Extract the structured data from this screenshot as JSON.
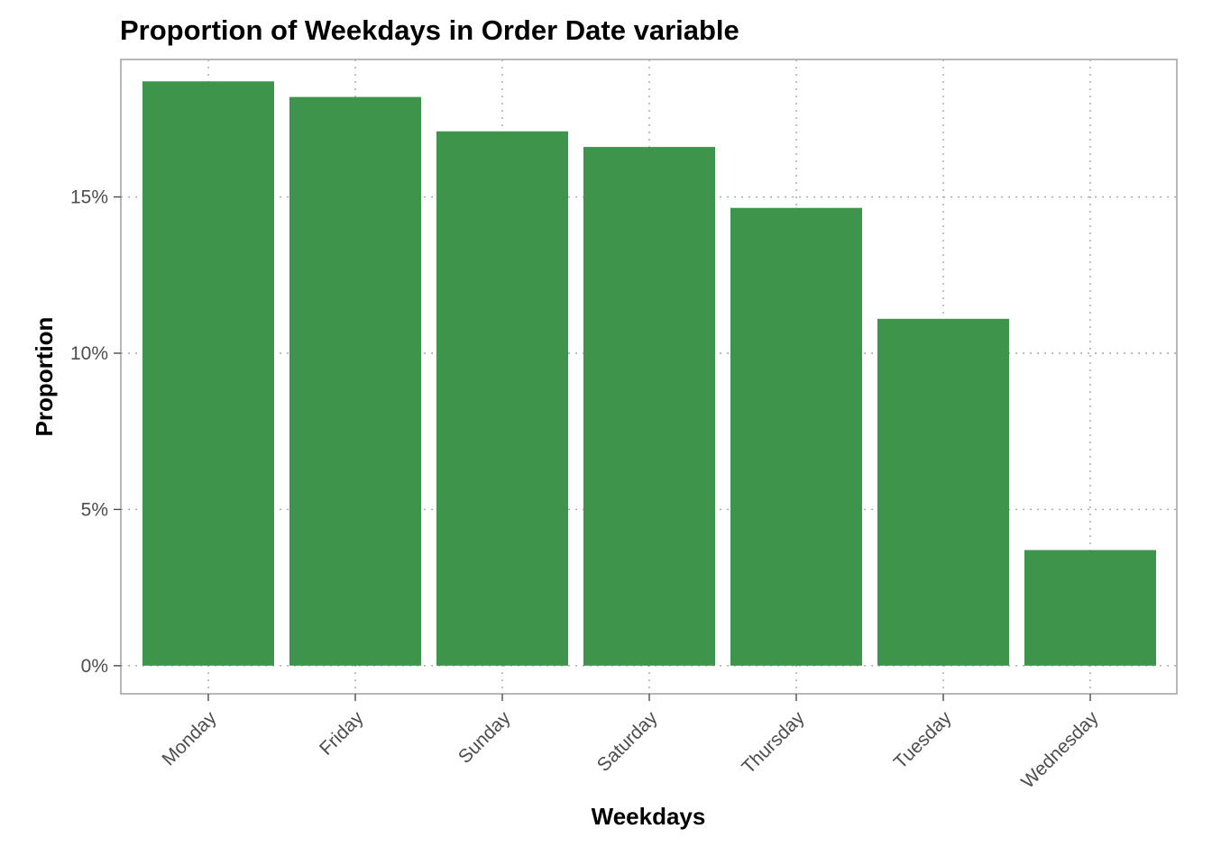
{
  "chart_data": {
    "type": "bar",
    "title": "Proportion of Weekdays in Order Date variable",
    "xlabel": "Weekdays",
    "ylabel": "Proportion",
    "categories": [
      "Monday",
      "Friday",
      "Sunday",
      "Saturday",
      "Thursday",
      "Tuesday",
      "Wednesday"
    ],
    "values": [
      18.7,
      18.2,
      17.1,
      16.6,
      14.65,
      11.1,
      3.7
    ],
    "ylim": [
      -0.9,
      19.4
    ],
    "yticks": [
      0,
      5,
      10,
      15
    ],
    "ytick_labels": [
      "0%",
      "5%",
      "10%",
      "15%"
    ],
    "grid": true,
    "legend": "none",
    "bar_color": "#3e944b"
  }
}
